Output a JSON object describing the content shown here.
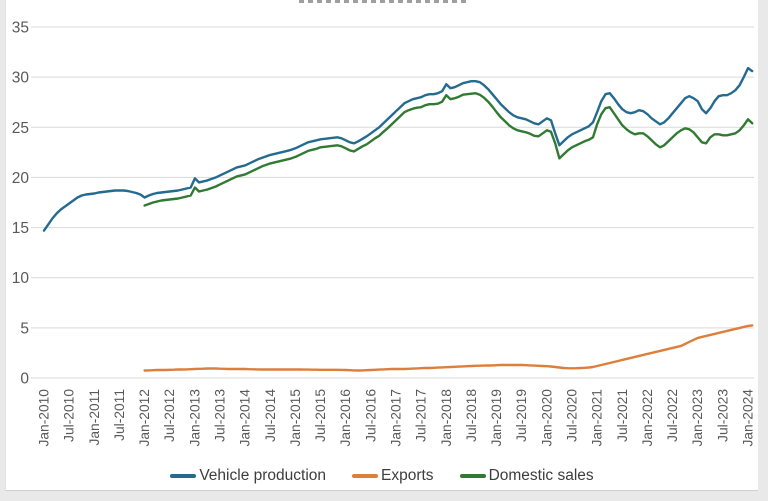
{
  "window": {
    "background": "#e9e9e9",
    "panel_background": "#ffffff"
  },
  "colors": {
    "gridline": "#d9d9d9",
    "axis_text": "#595959",
    "legend_text": "#3d3d3d",
    "vehicle_production": "#246b8f",
    "exports": "#dd7e3b",
    "domestic_sales": "#317a33"
  },
  "chart_data": {
    "type": "line",
    "title": "",
    "xlabel": "",
    "ylabel": "",
    "ylim": [
      0,
      35
    ],
    "y_ticks": [
      0,
      5,
      10,
      15,
      20,
      25,
      30,
      35
    ],
    "grid": "horizontal",
    "legend_position": "bottom",
    "x_unit": "month",
    "x_start": "Jan-2010",
    "x_end": "Feb-2024",
    "x_tick_labels": [
      "Jan-2010",
      "Jul-2010",
      "Jan-2011",
      "Jul-2011",
      "Jan-2012",
      "Jul-2012",
      "Jan-2013",
      "Jul-2013",
      "Jan-2014",
      "Jul-2014",
      "Jan-2015",
      "Jul-2015",
      "Jan-2016",
      "Jul-2016",
      "Jan-2017",
      "Jul-2017",
      "Jan-2018",
      "Jul-2018",
      "Jan-2019",
      "Jul-2019",
      "Jan-2020",
      "Jul-2020",
      "Jan-2021",
      "Jul-2021",
      "Jan-2022",
      "Jul-2022",
      "Jan-2023",
      "Jul-2023",
      "Jan-2024"
    ],
    "series": [
      {
        "name": "Vehicle production",
        "color": "#246b8f",
        "start_month": "Jan-2010",
        "start_index": 0,
        "values": [
          14.7,
          15.3,
          15.9,
          16.4,
          16.8,
          17.1,
          17.4,
          17.7,
          18.0,
          18.2,
          18.3,
          18.35,
          18.4,
          18.5,
          18.55,
          18.6,
          18.65,
          18.7,
          18.7,
          18.7,
          18.65,
          18.55,
          18.45,
          18.3,
          18.0,
          18.2,
          18.35,
          18.45,
          18.5,
          18.55,
          18.6,
          18.65,
          18.7,
          18.8,
          18.9,
          19.0,
          19.9,
          19.5,
          19.6,
          19.7,
          19.85,
          20.0,
          20.2,
          20.4,
          20.6,
          20.8,
          21.0,
          21.1,
          21.2,
          21.4,
          21.6,
          21.8,
          21.95,
          22.1,
          22.25,
          22.35,
          22.45,
          22.55,
          22.65,
          22.75,
          22.9,
          23.1,
          23.3,
          23.5,
          23.6,
          23.7,
          23.8,
          23.85,
          23.9,
          23.95,
          24.0,
          23.9,
          23.7,
          23.5,
          23.4,
          23.6,
          23.85,
          24.1,
          24.4,
          24.7,
          25.0,
          25.4,
          25.8,
          26.2,
          26.6,
          27.0,
          27.4,
          27.6,
          27.8,
          27.9,
          28.0,
          28.2,
          28.3,
          28.3,
          28.4,
          28.6,
          29.3,
          28.9,
          29.0,
          29.2,
          29.4,
          29.5,
          29.6,
          29.6,
          29.5,
          29.2,
          28.8,
          28.3,
          27.8,
          27.3,
          26.9,
          26.5,
          26.2,
          26.0,
          25.9,
          25.8,
          25.6,
          25.4,
          25.3,
          25.6,
          25.9,
          25.7,
          24.4,
          23.2,
          23.6,
          24.0,
          24.3,
          24.5,
          24.7,
          24.9,
          25.1,
          25.5,
          26.5,
          27.6,
          28.3,
          28.4,
          27.9,
          27.3,
          26.8,
          26.5,
          26.4,
          26.5,
          26.7,
          26.6,
          26.3,
          25.9,
          25.6,
          25.3,
          25.5,
          25.9,
          26.4,
          26.9,
          27.4,
          27.9,
          28.1,
          27.9,
          27.6,
          26.8,
          26.4,
          26.9,
          27.6,
          28.1,
          28.2,
          28.2,
          28.4,
          28.7,
          29.2,
          30.0,
          30.9,
          30.6
        ]
      },
      {
        "name": "Exports",
        "color": "#dd7e3b",
        "start_month": "Jan-2012",
        "start_index": 24,
        "values": [
          0.75,
          0.76,
          0.78,
          0.8,
          0.8,
          0.8,
          0.82,
          0.83,
          0.85,
          0.85,
          0.86,
          0.88,
          0.9,
          0.92,
          0.93,
          0.95,
          0.95,
          0.95,
          0.93,
          0.92,
          0.9,
          0.9,
          0.9,
          0.9,
          0.9,
          0.88,
          0.87,
          0.86,
          0.85,
          0.85,
          0.85,
          0.85,
          0.85,
          0.85,
          0.85,
          0.85,
          0.85,
          0.85,
          0.84,
          0.84,
          0.83,
          0.83,
          0.82,
          0.82,
          0.82,
          0.82,
          0.82,
          0.81,
          0.8,
          0.78,
          0.76,
          0.75,
          0.76,
          0.78,
          0.8,
          0.82,
          0.84,
          0.86,
          0.88,
          0.9,
          0.9,
          0.9,
          0.9,
          0.92,
          0.94,
          0.96,
          0.98,
          1.0,
          1.0,
          1.02,
          1.04,
          1.06,
          1.08,
          1.1,
          1.12,
          1.14,
          1.16,
          1.18,
          1.2,
          1.22,
          1.23,
          1.24,
          1.25,
          1.26,
          1.28,
          1.3,
          1.3,
          1.3,
          1.3,
          1.3,
          1.3,
          1.28,
          1.26,
          1.24,
          1.22,
          1.2,
          1.18,
          1.15,
          1.1,
          1.05,
          1.0,
          0.98,
          0.97,
          0.98,
          1.0,
          1.02,
          1.05,
          1.1,
          1.2,
          1.3,
          1.4,
          1.5,
          1.6,
          1.7,
          1.8,
          1.9,
          2.0,
          2.1,
          2.2,
          2.3,
          2.4,
          2.5,
          2.6,
          2.7,
          2.8,
          2.9,
          3.0,
          3.1,
          3.2,
          3.4,
          3.6,
          3.8,
          4.0,
          4.1,
          4.2,
          4.3,
          4.4,
          4.5,
          4.6,
          4.7,
          4.8,
          4.9,
          5.0,
          5.1,
          5.2,
          5.25
        ]
      },
      {
        "name": "Domestic sales",
        "color": "#317a33",
        "start_month": "Jan-2012",
        "start_index": 24,
        "values": [
          17.2,
          17.35,
          17.5,
          17.6,
          17.7,
          17.75,
          17.8,
          17.85,
          17.9,
          18.0,
          18.1,
          18.2,
          19.0,
          18.6,
          18.7,
          18.8,
          18.95,
          19.1,
          19.3,
          19.5,
          19.7,
          19.9,
          20.1,
          20.2,
          20.3,
          20.5,
          20.7,
          20.9,
          21.1,
          21.25,
          21.4,
          21.5,
          21.6,
          21.7,
          21.8,
          21.9,
          22.05,
          22.25,
          22.45,
          22.65,
          22.75,
          22.85,
          23.0,
          23.05,
          23.1,
          23.15,
          23.2,
          23.1,
          22.9,
          22.7,
          22.6,
          22.85,
          23.1,
          23.3,
          23.6,
          23.9,
          24.15,
          24.55,
          24.9,
          25.3,
          25.7,
          26.1,
          26.5,
          26.7,
          26.85,
          26.95,
          27.0,
          27.2,
          27.3,
          27.3,
          27.35,
          27.55,
          28.2,
          27.8,
          27.9,
          28.05,
          28.25,
          28.3,
          28.35,
          28.4,
          28.25,
          27.95,
          27.55,
          27.05,
          26.5,
          26.0,
          25.6,
          25.2,
          24.9,
          24.7,
          24.6,
          24.5,
          24.35,
          24.15,
          24.1,
          24.4,
          24.7,
          24.55,
          23.4,
          21.9,
          22.3,
          22.7,
          23.0,
          23.2,
          23.4,
          23.6,
          23.75,
          24.0,
          25.3,
          26.3,
          26.9,
          27.0,
          26.4,
          25.8,
          25.2,
          24.8,
          24.5,
          24.3,
          24.4,
          24.4,
          24.1,
          23.7,
          23.3,
          23.0,
          23.2,
          23.6,
          24.0,
          24.4,
          24.7,
          24.9,
          24.8,
          24.5,
          24.0,
          23.5,
          23.4,
          24.0,
          24.3,
          24.3,
          24.2,
          24.2,
          24.3,
          24.4,
          24.7,
          25.2,
          25.8,
          25.4
        ]
      }
    ]
  },
  "legend": {
    "items": [
      "Vehicle production",
      "Exports",
      "Domestic sales"
    ]
  }
}
